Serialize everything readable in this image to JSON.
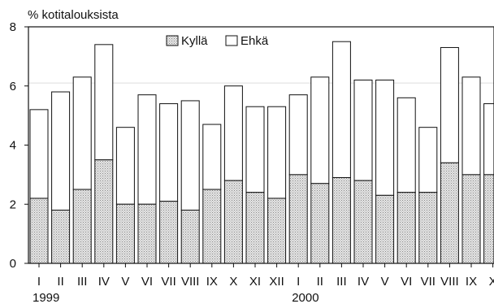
{
  "chart_data": {
    "type": "bar",
    "stacked": true,
    "ylabel": "% kotitalouksista",
    "ylim": [
      0,
      8
    ],
    "yticks": [
      0,
      2,
      4,
      6,
      8
    ],
    "categories": [
      "I",
      "II",
      "III",
      "IV",
      "V",
      "VI",
      "VII",
      "VIII",
      "IX",
      "X",
      "XI",
      "XII",
      "I",
      "II",
      "III",
      "IV",
      "V",
      "VI",
      "VII",
      "VIII",
      "IX",
      "X"
    ],
    "year_labels": [
      {
        "label": "1999",
        "at_index": 0
      },
      {
        "label": "2000",
        "at_index": 12
      }
    ],
    "series": [
      {
        "name": "Kyllä",
        "fill": "dotted-grey",
        "values": [
          2.2,
          1.8,
          2.5,
          3.5,
          2.0,
          2.0,
          2.1,
          1.8,
          2.5,
          2.8,
          2.4,
          2.2,
          3.0,
          2.7,
          2.9,
          2.8,
          2.3,
          2.4,
          2.4,
          3.4,
          3.0,
          3.0
        ]
      },
      {
        "name": "Ehkä",
        "fill": "white",
        "values": [
          3.0,
          4.0,
          3.8,
          3.9,
          2.6,
          3.7,
          3.3,
          3.7,
          2.2,
          3.2,
          2.9,
          3.1,
          2.7,
          3.6,
          4.6,
          3.4,
          3.9,
          3.2,
          2.2,
          3.9,
          3.3,
          2.4
        ]
      }
    ],
    "grid": false,
    "reference_line": 6.1,
    "legend": "top-center",
    "colors": {
      "frame": "#111111",
      "kylla_base": "#e4e4e4",
      "kylla_dots": "#8a8a8a",
      "ehka": "#ffffff",
      "reference": "#dddddd"
    }
  }
}
